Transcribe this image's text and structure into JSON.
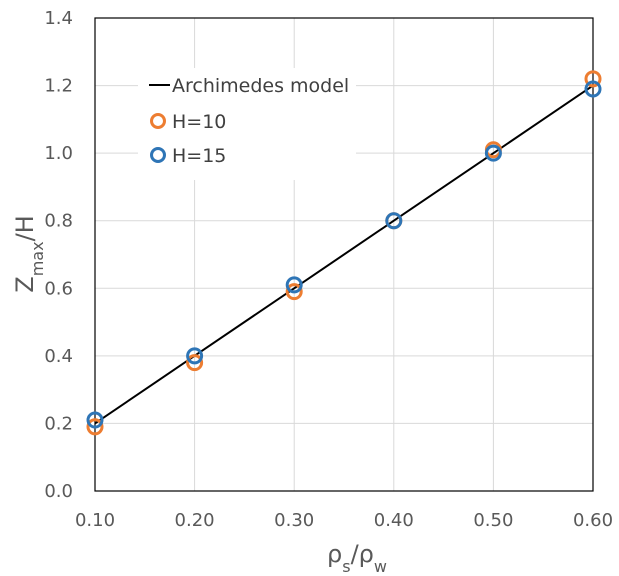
{
  "chart_data": {
    "type": "scatter",
    "xlim": [
      0.1,
      0.6
    ],
    "ylim": [
      0.0,
      1.4
    ],
    "x_ticks": [
      "0.10",
      "0.20",
      "0.30",
      "0.40",
      "0.50",
      "0.60"
    ],
    "y_ticks": [
      "0.0",
      "0.2",
      "0.4",
      "0.6",
      "0.8",
      "1.0",
      "1.2",
      "1.4"
    ],
    "xlabel": {
      "base": "ρ",
      "sub1": "s",
      "mid": "/ρ",
      "sub2": "w"
    },
    "ylabel": {
      "base": "Z",
      "sub": "max",
      "rest": "/H"
    },
    "grid": true,
    "legend_position": "upper-left",
    "series": [
      {
        "name": "Archimedes model",
        "kind": "line",
        "color": "#000000",
        "x": [
          0.1,
          0.2,
          0.3,
          0.4,
          0.5,
          0.6
        ],
        "y": [
          0.2,
          0.4,
          0.6,
          0.8,
          1.0,
          1.2
        ]
      },
      {
        "name": "H=10",
        "kind": "markers",
        "color": "#ED7D31",
        "x": [
          0.1,
          0.2,
          0.3,
          0.4,
          0.5,
          0.6
        ],
        "y": [
          0.19,
          0.38,
          0.59,
          0.8,
          1.01,
          1.22
        ]
      },
      {
        "name": "H=15",
        "kind": "markers",
        "color": "#2E75B6",
        "x": [
          0.1,
          0.2,
          0.3,
          0.4,
          0.5,
          0.6
        ],
        "y": [
          0.21,
          0.4,
          0.61,
          0.8,
          1.0,
          1.19
        ]
      }
    ]
  }
}
